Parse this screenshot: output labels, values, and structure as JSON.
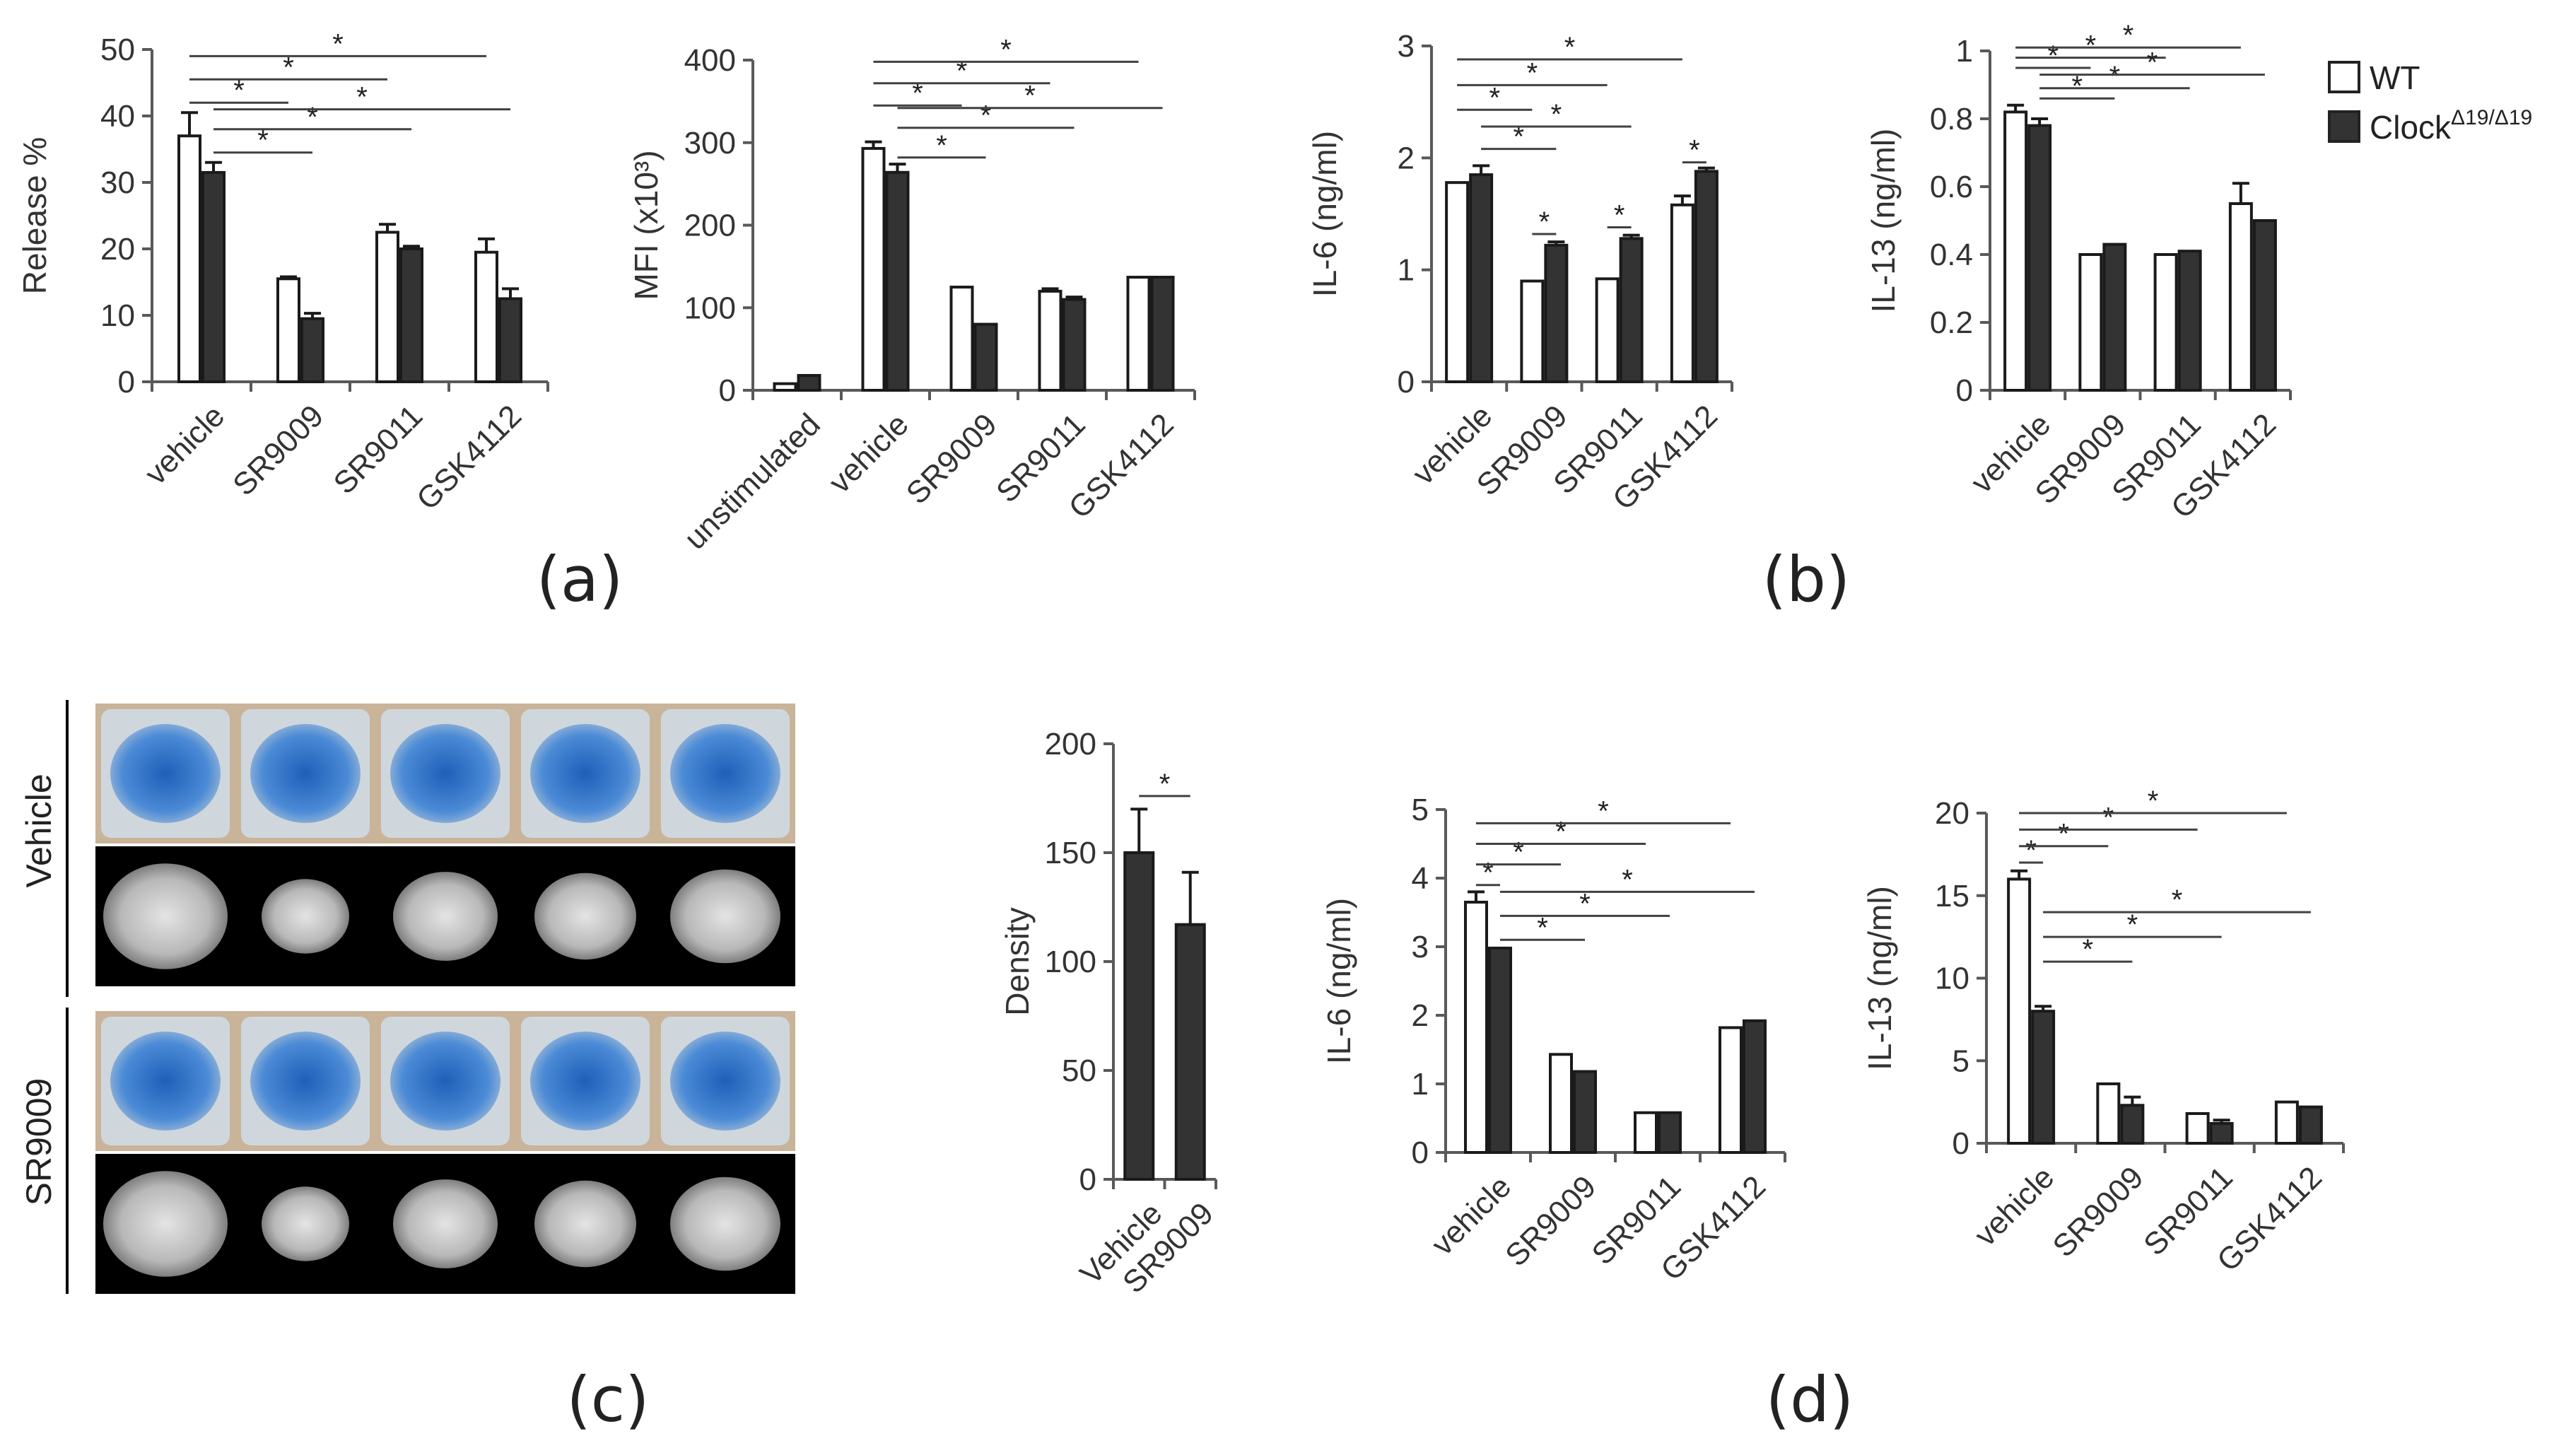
{
  "colors": {
    "wt_fill": "#ffffff",
    "clock_fill": "#333333",
    "axis": "#595959",
    "sig_line": "#404040",
    "photo_blue": "#2f74c8",
    "photo_bg": "#c9b49a"
  },
  "legend": {
    "wt": "WT",
    "clock_base": "Clock",
    "clock_sup": "Δ19/Δ19"
  },
  "panel_labels": [
    "(a)",
    "(b)",
    "(c)",
    "(d)"
  ],
  "image_rows": [
    "Vehicle",
    "SR9009"
  ],
  "chart_data": [
    {
      "id": "release",
      "type": "bar",
      "ylabel": "Release %",
      "ylim": [
        0,
        50
      ],
      "yticks": [
        "0",
        "10",
        "20",
        "30",
        "40",
        "50"
      ],
      "categories": [
        "vehicle",
        "SR9009",
        "SR9011",
        "GSK4112"
      ],
      "series": [
        {
          "name": "WT",
          "values": [
            37,
            15.5,
            22.5,
            19.5
          ],
          "errors": [
            3.5,
            0.3,
            1.2,
            2.0
          ]
        },
        {
          "name": "ClockΔ19/Δ19",
          "values": [
            31.5,
            9.5,
            20,
            12.5
          ],
          "errors": [
            1.5,
            0.8,
            0.4,
            1.5
          ]
        }
      ],
      "significance": [
        {
          "from": 0,
          "to": 1,
          "y": 42
        },
        {
          "from": 0,
          "to": 2,
          "y": 45.5
        },
        {
          "from": 0,
          "to": 3,
          "y": 49
        },
        {
          "from": 0.5,
          "to": 1.5,
          "y": 34.5
        },
        {
          "from": 0.5,
          "to": 2.5,
          "y": 38
        },
        {
          "from": 0.5,
          "to": 3.5,
          "y": 41
        }
      ]
    },
    {
      "id": "mfi",
      "type": "bar",
      "ylabel": "MFI (x10³)",
      "ylim": [
        0,
        400
      ],
      "yticks": [
        "0",
        "100",
        "200",
        "300",
        "400"
      ],
      "categories": [
        "unstimulated",
        "vehicle",
        "SR9009",
        "SR9011",
        "GSK4112"
      ],
      "series": [
        {
          "name": "WT",
          "values": [
            8,
            293,
            125,
            120,
            137
          ],
          "errors": [
            0,
            8,
            0,
            3,
            0
          ]
        },
        {
          "name": "ClockΔ19/Δ19",
          "values": [
            18,
            264,
            80,
            110,
            137
          ],
          "errors": [
            0,
            10,
            0,
            3,
            0
          ]
        }
      ],
      "significance": [
        {
          "from": 1,
          "to": 2,
          "y": 345
        },
        {
          "from": 1,
          "to": 3,
          "y": 372
        },
        {
          "from": 1,
          "to": 4,
          "y": 398
        },
        {
          "from": 1.5,
          "to": 2.5,
          "y": 282
        },
        {
          "from": 1.5,
          "to": 3.5,
          "y": 318
        },
        {
          "from": 1.5,
          "to": 4.5,
          "y": 342
        }
      ]
    },
    {
      "id": "il6_b",
      "type": "bar",
      "ylabel": "IL-6 (ng/ml)",
      "ylim": [
        0,
        3
      ],
      "yticks": [
        "0",
        "1",
        "2",
        "3"
      ],
      "categories": [
        "vehicle",
        "SR9009",
        "SR9011",
        "GSK4112"
      ],
      "series": [
        {
          "name": "WT",
          "values": [
            1.78,
            0.9,
            0.92,
            1.58
          ],
          "errors": [
            0,
            0,
            0,
            0.08
          ]
        },
        {
          "name": "ClockΔ19/Δ19",
          "values": [
            1.85,
            1.22,
            1.28,
            1.88
          ],
          "errors": [
            0.08,
            0.03,
            0.03,
            0.03
          ]
        }
      ],
      "significance": [
        {
          "from": 0,
          "to": 1,
          "y": 2.43
        },
        {
          "from": 0,
          "to": 2,
          "y": 2.65
        },
        {
          "from": 0,
          "to": 3,
          "y": 2.88
        },
        {
          "from": 0.5,
          "to": 1.5,
          "y": 2.08
        },
        {
          "from": 0.5,
          "to": 2.5,
          "y": 2.28
        },
        {
          "from": 1,
          "to": 1.5,
          "y": 1.32
        },
        {
          "from": 2,
          "to": 2.5,
          "y": 1.38
        },
        {
          "from": 3,
          "to": 3.5,
          "y": 1.96
        }
      ]
    },
    {
      "id": "il13_b",
      "type": "bar",
      "ylabel": "IL-13 (ng/ml)",
      "ylim": [
        0,
        1
      ],
      "yticks": [
        "0",
        "0.2",
        "0.4",
        "0.6",
        "0.8",
        "1"
      ],
      "categories": [
        "vehicle",
        "SR9009",
        "SR9011",
        "GSK4112"
      ],
      "series": [
        {
          "name": "WT",
          "values": [
            0.82,
            0.4,
            0.4,
            0.55
          ],
          "errors": [
            0.02,
            0,
            0,
            0.06
          ]
        },
        {
          "name": "ClockΔ19/Δ19",
          "values": [
            0.78,
            0.43,
            0.41,
            0.5
          ],
          "errors": [
            0.02,
            0,
            0,
            0
          ]
        }
      ],
      "significance": [
        {
          "from": 0,
          "to": 1,
          "y": 0.95
        },
        {
          "from": 0,
          "to": 2,
          "y": 0.98
        },
        {
          "from": 0,
          "to": 3,
          "y": 1.01
        },
        {
          "from": 0.5,
          "to": 1.5,
          "y": 0.86
        },
        {
          "from": 0.5,
          "to": 2.5,
          "y": 0.89
        },
        {
          "from": 0.5,
          "to": 3.5,
          "y": 0.93
        }
      ]
    },
    {
      "id": "density",
      "type": "bar",
      "ylabel": "Density",
      "ylim": [
        0,
        200
      ],
      "yticks": [
        "0",
        "50",
        "100",
        "150",
        "200"
      ],
      "categories": [
        "Vehicle",
        "SR9009"
      ],
      "series": [
        {
          "name": "",
          "values": [
            150,
            117
          ],
          "errors": [
            20,
            24
          ]
        }
      ],
      "significance": [
        {
          "from": 0,
          "to": 1,
          "y": 176
        }
      ]
    },
    {
      "id": "il6_d",
      "type": "bar",
      "ylabel": "IL-6 (ng/ml)",
      "ylim": [
        0,
        5
      ],
      "yticks": [
        "0",
        "1",
        "2",
        "3",
        "4",
        "5"
      ],
      "categories": [
        "vehicle",
        "SR9009",
        "SR9011",
        "GSK4112"
      ],
      "series": [
        {
          "name": "WT",
          "values": [
            3.65,
            1.43,
            0.58,
            1.82
          ],
          "errors": [
            0.15,
            0,
            0,
            0
          ]
        },
        {
          "name": "ClockΔ19/Δ19",
          "values": [
            2.98,
            1.18,
            0.58,
            1.92
          ],
          "errors": [
            0,
            0,
            0,
            0
          ]
        }
      ],
      "significance": [
        {
          "from": 0,
          "to": 0.5,
          "y": 3.9
        },
        {
          "from": 0,
          "to": 1,
          "y": 4.2
        },
        {
          "from": 0,
          "to": 2,
          "y": 4.5
        },
        {
          "from": 0,
          "to": 3,
          "y": 4.8
        },
        {
          "from": 0.5,
          "to": 1.5,
          "y": 3.1
        },
        {
          "from": 0.5,
          "to": 2.5,
          "y": 3.45
        },
        {
          "from": 0.5,
          "to": 3.5,
          "y": 3.8
        }
      ]
    },
    {
      "id": "il13_d",
      "type": "bar",
      "ylabel": "IL-13 (ng/ml)",
      "ylim": [
        0,
        20
      ],
      "yticks": [
        "0",
        "5",
        "10",
        "15",
        "20"
      ],
      "categories": [
        "vehicle",
        "SR9009",
        "SR9011",
        "GSK4112"
      ],
      "series": [
        {
          "name": "WT",
          "values": [
            16,
            3.6,
            1.8,
            2.5
          ],
          "errors": [
            0.5,
            0,
            0,
            0
          ]
        },
        {
          "name": "ClockΔ19/Δ19",
          "values": [
            8,
            2.3,
            1.2,
            2.2
          ],
          "errors": [
            0.3,
            0.5,
            0.2,
            0
          ]
        }
      ],
      "significance": [
        {
          "from": 0,
          "to": 0.5,
          "y": 17
        },
        {
          "from": 0,
          "to": 1,
          "y": 18
        },
        {
          "from": 0,
          "to": 2,
          "y": 19
        },
        {
          "from": 0,
          "to": 3,
          "y": 20
        },
        {
          "from": 0.5,
          "to": 1.5,
          "y": 11
        },
        {
          "from": 0.5,
          "to": 2.5,
          "y": 12.5
        },
        {
          "from": 0.5,
          "to": 3.5,
          "y": 14
        }
      ]
    }
  ]
}
